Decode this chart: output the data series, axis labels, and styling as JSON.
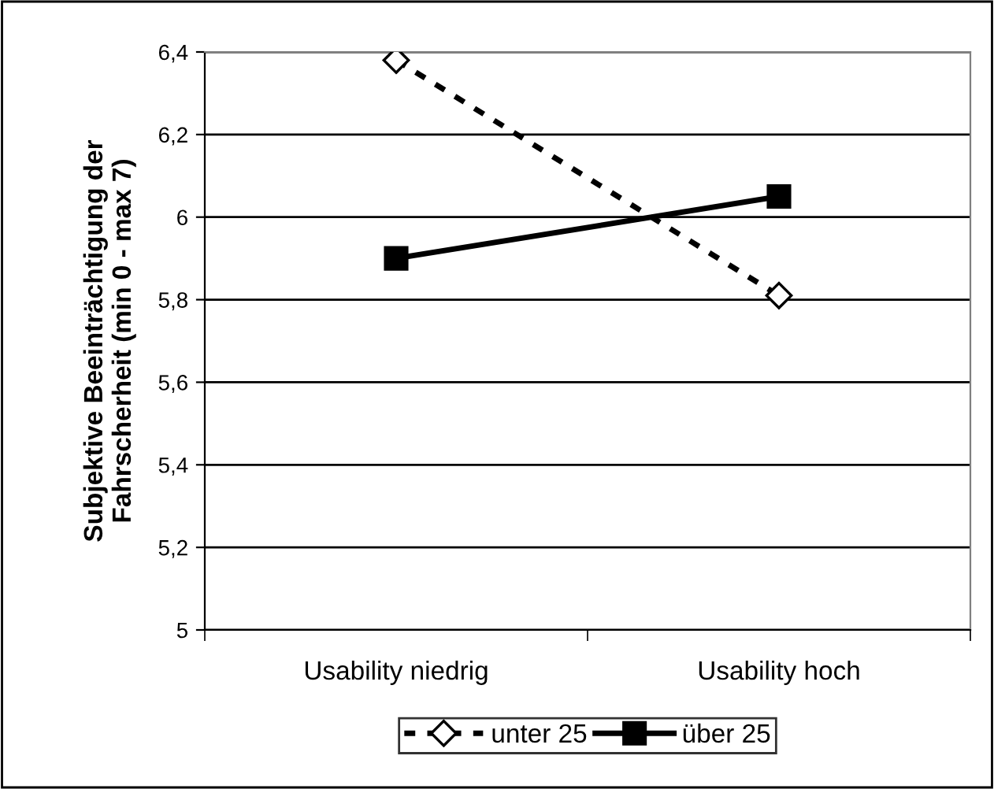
{
  "chart_data": {
    "type": "line",
    "ylabel": "Subjektive Beeinträchtigung der\nFahrscherheit (min 0 - max 7)",
    "categories": [
      "Usability niedrig",
      "Usability hoch"
    ],
    "series": [
      {
        "name": "unter 25",
        "color": "#000000",
        "values": [
          6.38,
          5.81
        ],
        "marker": "diamond",
        "line_style": "dashed"
      },
      {
        "name": "über 25",
        "color": "#000000",
        "values": [
          5.9,
          6.05
        ],
        "marker": "square",
        "line_style": "solid"
      }
    ],
    "ylim": [
      5,
      6.4
    ],
    "yticks": [
      5,
      {
        "value": 5.2,
        "label": "5,2"
      },
      {
        "value": 5.4,
        "label": "5,4"
      },
      {
        "value": 5.6,
        "label": "5,6"
      },
      {
        "value": 5.8,
        "label": "5,8"
      },
      6,
      {
        "value": 6.2,
        "label": "6,2"
      },
      {
        "value": 6.4,
        "label": "6,4"
      }
    ],
    "grid": "y",
    "legend": "bottom"
  }
}
